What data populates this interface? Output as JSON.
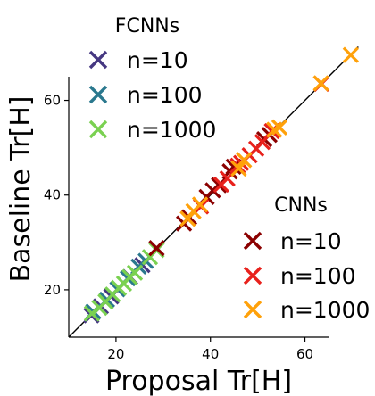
{
  "chart_data": {
    "type": "scatter",
    "xlabel": "Proposal Tr[H]",
    "ylabel": "Baseline Tr[H]",
    "xlim": [
      10,
      65
    ],
    "ylim": [
      10,
      65
    ],
    "xticks": [
      20,
      40,
      60
    ],
    "yticks": [
      20,
      40,
      60
    ],
    "reference_line": "y = x",
    "grid": false,
    "marker": "x",
    "legends": [
      {
        "title": "FCNNs",
        "placement": "top-left",
        "series": [
          {
            "name": "n=10",
            "color": "#453781",
            "points": [
              [
                14.8,
                14.6
              ],
              [
                16.8,
                16.5
              ],
              [
                19.0,
                18.6
              ],
              [
                23.0,
                22.7
              ],
              [
                25.6,
                25.2
              ]
            ]
          },
          {
            "name": "n=100",
            "color": "#2a788e",
            "points": [
              [
                15.2,
                15.4
              ],
              [
                18.1,
                17.9
              ],
              [
                20.3,
                20.1
              ],
              [
                22.5,
                22.4
              ],
              [
                24.8,
                24.9
              ],
              [
                26.3,
                26.1
              ]
            ]
          },
          {
            "name": "n=1000",
            "color": "#7ad151",
            "points": [
              [
                14.9,
                15.0
              ],
              [
                16.5,
                16.2
              ],
              [
                17.8,
                17.5
              ],
              [
                19.3,
                19.0
              ],
              [
                20.6,
                20.4
              ],
              [
                21.7,
                21.3
              ],
              [
                22.9,
                22.7
              ],
              [
                24.0,
                23.6
              ],
              [
                27.2,
                26.9
              ],
              [
                28.6,
                28.4
              ]
            ]
          }
        ]
      },
      {
        "title": "CNNs",
        "placement": "lower-right",
        "series": [
          {
            "name": "n=10",
            "color": "#8b0000",
            "points": [
              [
                28.6,
                28.8
              ],
              [
                34.4,
                34.0
              ],
              [
                35.5,
                35.3
              ],
              [
                39.2,
                39.6
              ],
              [
                40.5,
                41.0
              ],
              [
                41.8,
                42.1
              ],
              [
                44.1,
                45.0
              ],
              [
                44.9,
                46.0
              ],
              [
                51.4,
                51.8
              ],
              [
                52.5,
                52.7
              ]
            ]
          },
          {
            "name": "n=100",
            "color": "#e8211c",
            "points": [
              [
                38.0,
                37.6
              ],
              [
                42.3,
                42.2
              ],
              [
                43.6,
                43.5
              ],
              [
                45.8,
                46.2
              ],
              [
                46.5,
                46.8
              ],
              [
                48.3,
                48.4
              ],
              [
                49.7,
                49.8
              ],
              [
                51.0,
                51.2
              ],
              [
                53.0,
                53.5
              ],
              [
                63.5,
                63.5
              ]
            ]
          },
          {
            "name": "n=1000",
            "color": "#ffa10a",
            "points": [
              [
                35.2,
                35.0
              ],
              [
                36.4,
                36.6
              ],
              [
                37.8,
                38.0
              ],
              [
                46.0,
                45.6
              ],
              [
                47.1,
                47.4
              ],
              [
                53.5,
                53.8
              ],
              [
                54.6,
                54.3
              ],
              [
                63.4,
                63.6
              ],
              [
                69.7,
                69.6
              ]
            ]
          }
        ]
      }
    ]
  }
}
